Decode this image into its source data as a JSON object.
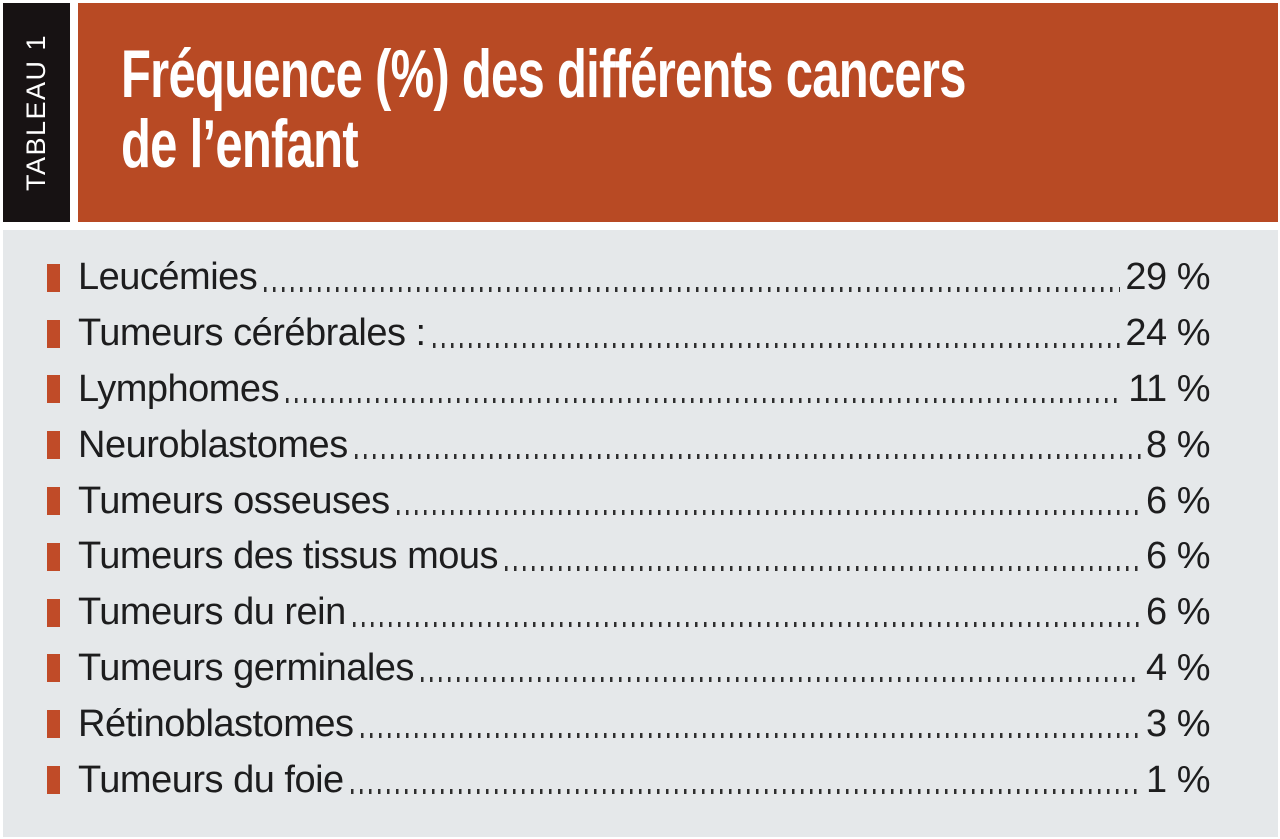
{
  "page": {
    "background": "#ffffff",
    "body_bg": "#e5e8ea",
    "header_bg": "#b84a24",
    "tab_bg": "#171213",
    "title_color": "#ffffff",
    "text_color": "#1d1d1e",
    "bullet_color": "#c04b28",
    "dot_leader_color": "#2e2e2e"
  },
  "header": {
    "tab_label": "TABLEAU 1",
    "title_line1": "Fréquence (%) des différents cancers",
    "title_line2": "de l’enfant"
  },
  "rows": [
    {
      "label": "Leucémies",
      "value": "29 %"
    },
    {
      "label": "Tumeurs cérébrales :",
      "value": "24 %"
    },
    {
      "label": "Lymphomes",
      "value": "11 %"
    },
    {
      "label": "Neuroblastomes",
      "value": "8 %"
    },
    {
      "label": "Tumeurs osseuses",
      "value": "6 %"
    },
    {
      "label": "Tumeurs des tissus mous",
      "value": "6 %"
    },
    {
      "label": "Tumeurs du rein",
      "value": "6 %"
    },
    {
      "label": "Tumeurs germinales",
      "value": "4 %"
    },
    {
      "label": "Rétinoblastomes",
      "value": "3 %"
    },
    {
      "label": "Tumeurs du foie",
      "value": "1 %"
    }
  ],
  "chart_data": {
    "type": "table",
    "title": "Fréquence (%) des différents cancers de l’enfant",
    "categories": [
      "Leucémies",
      "Tumeurs cérébrales",
      "Lymphomes",
      "Neuroblastomes",
      "Tumeurs osseuses",
      "Tumeurs des tissus mous",
      "Tumeurs du rein",
      "Tumeurs germinales",
      "Rétinoblastomes",
      "Tumeurs du foie"
    ],
    "values": [
      29,
      24,
      11,
      8,
      6,
      6,
      6,
      4,
      3,
      1
    ],
    "unit": "%"
  }
}
